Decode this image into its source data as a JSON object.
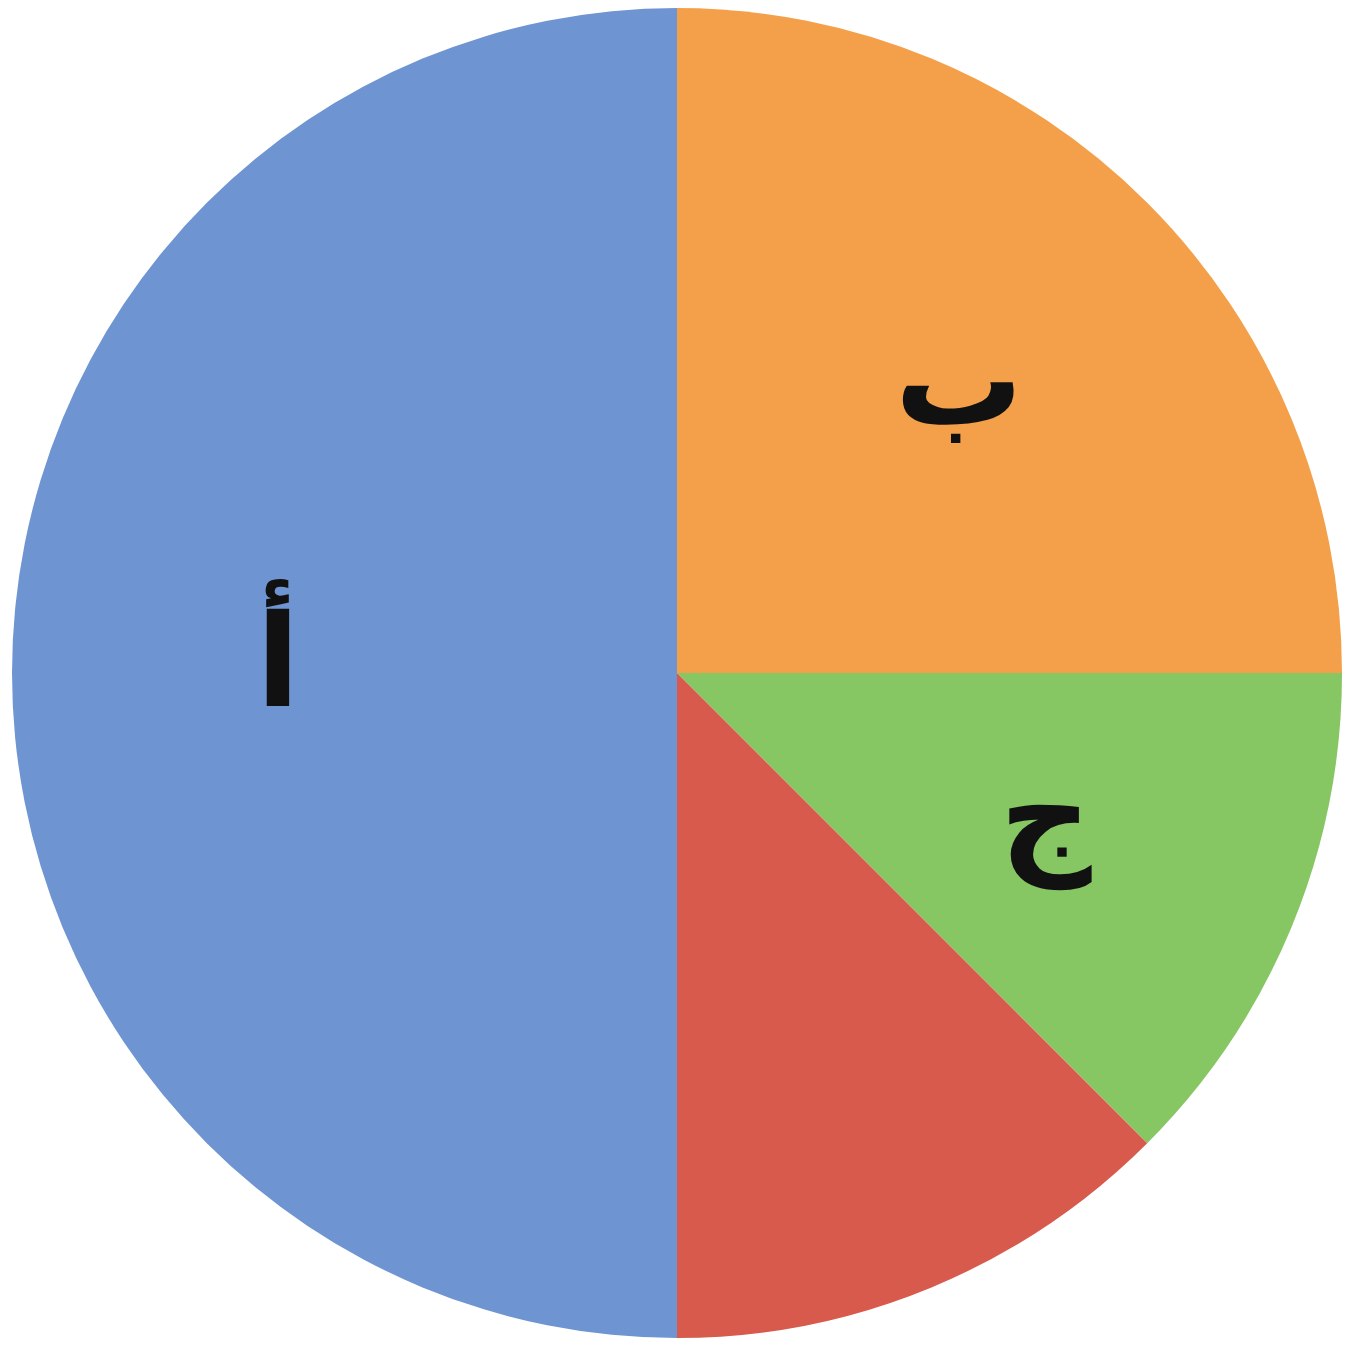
{
  "chart_data": {
    "type": "pie",
    "categories": [
      "ب",
      "ج",
      null,
      "أ"
    ],
    "values": [
      25,
      12.5,
      12.5,
      50
    ],
    "colors": [
      "#f4a04a",
      "#86c663",
      "#d85a4c",
      "#6e94d2"
    ],
    "legend": false
  }
}
